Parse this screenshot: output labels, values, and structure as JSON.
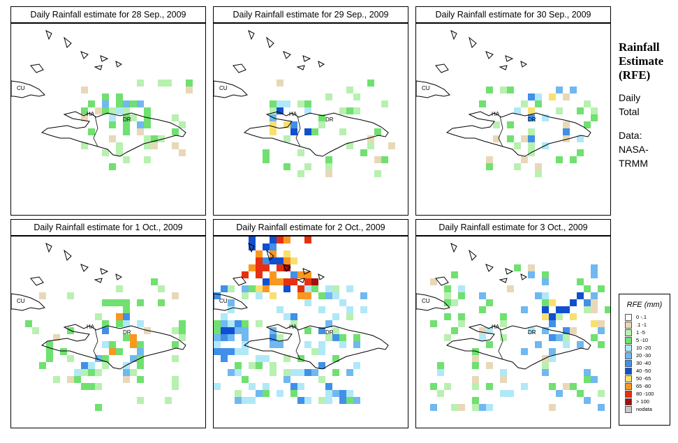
{
  "panels": [
    {
      "title": "Daily Rainfall estimate for  28 Sep., 2009",
      "labels": {
        "cu": "CU",
        "ha": "HA",
        "dr": "DR"
      }
    },
    {
      "title": "Daily Rainfall estimate for  29 Sep., 2009",
      "labels": {
        "cu": "CU",
        "ha": "HA",
        "dr": "DR"
      }
    },
    {
      "title": "Daily Rainfall estimate for  30 Sep., 2009",
      "labels": {
        "cu": "CU",
        "ha": "HA",
        "dr": "DR"
      }
    },
    {
      "title": "Daily Rainfall estimate for  1 Oct., 2009",
      "labels": {
        "cu": "CU",
        "ha": "HA",
        "dr": "DR"
      }
    },
    {
      "title": "Daily Rainfall estimate for  2 Oct., 2009",
      "labels": {
        "cu": "CU",
        "ha": "HA",
        "dr": "DR"
      }
    },
    {
      "title": "Daily Rainfall estimate for  3 Oct., 2009",
      "labels": {
        "cu": "CU",
        "ha": "HA",
        "dr": "DR"
      }
    }
  ],
  "side": {
    "heading_1": "Rainfall",
    "heading_2": "Estimate",
    "heading_3": "(RFE)",
    "daily": "Daily",
    "total": "Total",
    "data": "Data:",
    "nasa": "NASA-",
    "trmm": "TRMM"
  },
  "legend": {
    "title": "RFE (mm)",
    "items": [
      {
        "label": "0 -.1",
        "color": "#ffffff"
      },
      {
        "label": ".1 -1",
        "color": "#e8d8b8"
      },
      {
        "label": "1 -5",
        "color": "#b8f0b0"
      },
      {
        "label": "5 -10",
        "color": "#70e070"
      },
      {
        "label": "10 -20",
        "color": "#b0e8f8"
      },
      {
        "label": "20 -30",
        "color": "#70b8f0"
      },
      {
        "label": "30 -40",
        "color": "#4090e8"
      },
      {
        "label": "40 -50",
        "color": "#1050d0"
      },
      {
        "label": "50 -65",
        "color": "#f8e070"
      },
      {
        "label": "65 -80",
        "color": "#f89820"
      },
      {
        "label": "80 -100",
        "color": "#e83010"
      },
      {
        "label": "> 100",
        "color": "#a01010"
      },
      {
        "label": "nodata",
        "color": "#c8c8c8"
      }
    ]
  }
}
